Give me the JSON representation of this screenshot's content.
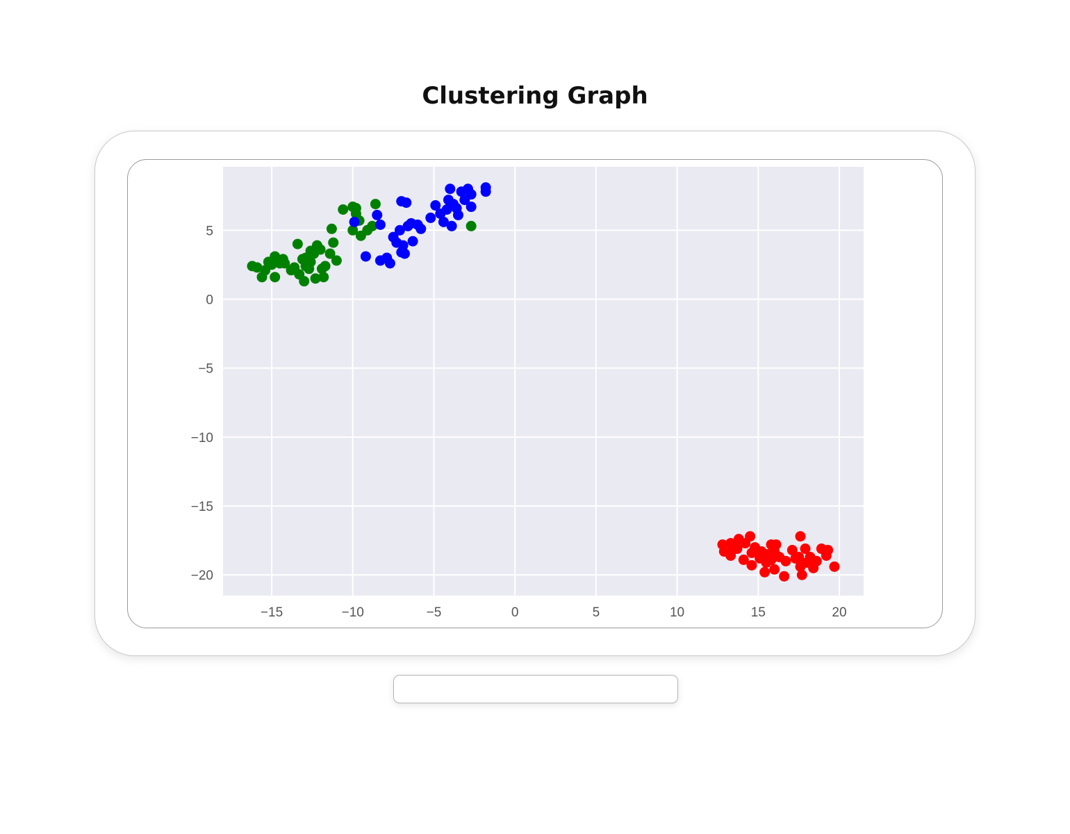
{
  "page": {
    "title": "Clustering Graph"
  },
  "chart_data": {
    "type": "scatter",
    "title": "",
    "xlabel": "",
    "ylabel": "",
    "xlim": [
      -18,
      21.5
    ],
    "ylim": [
      -21.5,
      9.6
    ],
    "xticks": [
      -15,
      -10,
      -5,
      0,
      5,
      10,
      15,
      20
    ],
    "yticks": [
      5,
      0,
      -5,
      -10,
      -15,
      -20
    ],
    "grid": true,
    "background": "#EAEAF2",
    "series": [
      {
        "color": "#008000",
        "points": [
          [
            -16.2,
            2.4
          ],
          [
            -15.9,
            2.3
          ],
          [
            -15.6,
            1.6
          ],
          [
            -15.4,
            2.1
          ],
          [
            -15.2,
            2.7
          ],
          [
            -15,
            2.5
          ],
          [
            -14.8,
            3.1
          ],
          [
            -14.8,
            1.6
          ],
          [
            -14.5,
            2.6
          ],
          [
            -14.2,
            2.6
          ],
          [
            -13.8,
            2.1
          ],
          [
            -13.6,
            2.3
          ],
          [
            -13.4,
            4
          ],
          [
            -13.3,
            1.8
          ],
          [
            -13.1,
            2.9
          ],
          [
            -13,
            1.3
          ],
          [
            -12.9,
            2.4
          ],
          [
            -12.7,
            2.2
          ],
          [
            -12.6,
            2.7
          ],
          [
            -12.6,
            3.5
          ],
          [
            -12.4,
            3.3
          ],
          [
            -12.3,
            1.5
          ],
          [
            -12.2,
            3.9
          ],
          [
            -12,
            3.6
          ],
          [
            -11.8,
            1.6
          ],
          [
            -11.9,
            2.2
          ],
          [
            -11.7,
            2.4
          ],
          [
            -11.4,
            3.3
          ],
          [
            -11.3,
            5.1
          ],
          [
            -11.2,
            4.1
          ],
          [
            -11,
            2.8
          ],
          [
            -10.6,
            6.5
          ],
          [
            -10,
            6.7
          ],
          [
            -10,
            5
          ],
          [
            -9.8,
            6.2
          ],
          [
            -9.6,
            5.7
          ],
          [
            -9.5,
            4.6
          ],
          [
            -9.1,
            5.0
          ],
          [
            -8.8,
            5.3
          ],
          [
            -8.6,
            6.9
          ],
          [
            -2.7,
            5.3
          ],
          [
            -9.8,
            6.6
          ],
          [
            -12.9,
            3.0
          ],
          [
            -14.3,
            2.9
          ]
        ]
      },
      {
        "color": "#0000ff",
        "points": [
          [
            -9.9,
            5.6
          ],
          [
            -9.2,
            3.1
          ],
          [
            -8.5,
            6.1
          ],
          [
            -8.3,
            5.4
          ],
          [
            -8.3,
            2.8
          ],
          [
            -7.9,
            3.0
          ],
          [
            -7.7,
            2.6
          ],
          [
            -7.5,
            4.5
          ],
          [
            -7.3,
            4.1
          ],
          [
            -7.1,
            5.0
          ],
          [
            -7,
            3.4
          ],
          [
            -7,
            7.1
          ],
          [
            -6.9,
            3.9
          ],
          [
            -6.8,
            3.3
          ],
          [
            -6.7,
            7
          ],
          [
            -6.6,
            5.3
          ],
          [
            -6.4,
            5.5
          ],
          [
            -6.3,
            4.2
          ],
          [
            -6,
            5.4
          ],
          [
            -5.8,
            5.1
          ],
          [
            -5.2,
            5.9
          ],
          [
            -4.9,
            6.8
          ],
          [
            -4.6,
            6.2
          ],
          [
            -4.4,
            5.6
          ],
          [
            -4.2,
            6.5
          ],
          [
            -4.1,
            7.2
          ],
          [
            -4,
            8
          ],
          [
            -3.9,
            5.3
          ],
          [
            -3.6,
            6.6
          ],
          [
            -3.5,
            6.1
          ],
          [
            -3.3,
            7.8
          ],
          [
            -3.1,
            7.2
          ],
          [
            -2.9,
            8
          ],
          [
            -2.7,
            6.7
          ],
          [
            -2.7,
            7.6
          ],
          [
            -1.8,
            8.1
          ],
          [
            -1.8,
            7.8
          ],
          [
            -3.8,
            6.9
          ]
        ]
      },
      {
        "color": "#ff0000",
        "points": [
          [
            12.8,
            -17.8
          ],
          [
            12.9,
            -18.3
          ],
          [
            13.3,
            -17.7
          ],
          [
            13.3,
            -18.6
          ],
          [
            13.8,
            -17.4
          ],
          [
            13.7,
            -18.1
          ],
          [
            14.1,
            -18.9
          ],
          [
            14.2,
            -17.7
          ],
          [
            14.5,
            -17.2
          ],
          [
            14.6,
            -18.4
          ],
          [
            14.6,
            -19.3
          ],
          [
            14.8,
            -18.0
          ],
          [
            15.1,
            -18.8
          ],
          [
            15.2,
            -18.3
          ],
          [
            15.5,
            -19.1
          ],
          [
            15.4,
            -19.8
          ],
          [
            15.6,
            -18.5
          ],
          [
            15.8,
            -17.8
          ],
          [
            15.8,
            -18.9
          ],
          [
            16,
            -18.3
          ],
          [
            16,
            -19.6
          ],
          [
            16.1,
            -17.8
          ],
          [
            16.3,
            -18.7
          ],
          [
            16.6,
            -20.1
          ],
          [
            16.7,
            -19.0
          ],
          [
            17.1,
            -18.2
          ],
          [
            17.6,
            -17.2
          ],
          [
            17.5,
            -18.7
          ],
          [
            17.6,
            -19.4
          ],
          [
            17.7,
            -20
          ],
          [
            17.9,
            -18.1
          ],
          [
            18,
            -19.1
          ],
          [
            18.2,
            -18.7
          ],
          [
            18.4,
            -19.5
          ],
          [
            18.6,
            -19
          ],
          [
            18.9,
            -18.1
          ],
          [
            19.2,
            -18.6
          ],
          [
            19.3,
            -18.2
          ],
          [
            19.7,
            -19.4
          ],
          [
            15.4,
            -18.7
          ],
          [
            17.3,
            -18.8
          ],
          [
            13.4,
            -18.2
          ]
        ]
      }
    ]
  }
}
